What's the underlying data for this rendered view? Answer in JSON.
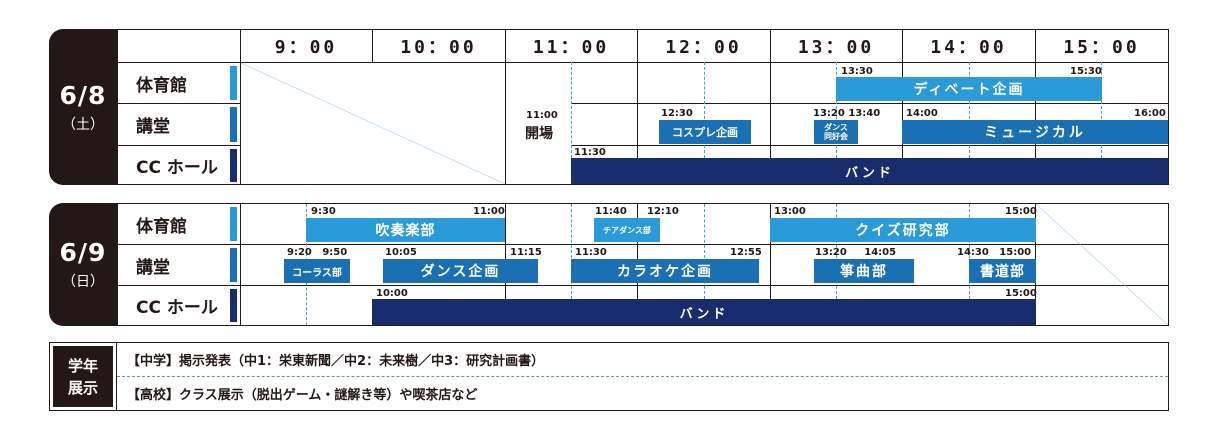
{
  "header_times": [
    "9：00",
    "10：00",
    "11：00",
    "12：00",
    "13：00",
    "14：00",
    "15：00"
  ],
  "day1": {
    "date": "6/8",
    "weekday": "（土）",
    "venues": [
      "体育館",
      "講堂",
      "CC ホール"
    ],
    "opening": {
      "time": "11:00",
      "label": "開場"
    },
    "events": {
      "debate": {
        "label": "ディベート企画",
        "start": "13:30",
        "end": "15:30"
      },
      "cosplay": {
        "label": "コスプレ企画",
        "start": "12:30"
      },
      "dance_club": {
        "label": "ダンス\n同好会",
        "start": "13:20",
        "end": "13:40"
      },
      "musical": {
        "label": "ミュージカル",
        "start": "14:00",
        "end": "16:00"
      },
      "band": {
        "label": "バンド",
        "start": "11:30"
      }
    }
  },
  "day2": {
    "date": "6/9",
    "weekday": "（日）",
    "venues": [
      "体育館",
      "講堂",
      "CC ホール"
    ],
    "events": {
      "brass": {
        "label": "吹奏楽部",
        "start": "9:30",
        "end": "11:00"
      },
      "cheer": {
        "label": "チアダンス部",
        "start": "11:40",
        "end": "12:10"
      },
      "quiz": {
        "label": "クイズ研究部",
        "start": "13:00",
        "end": "15:00"
      },
      "chorus": {
        "label": "コーラス部",
        "start": "9:20",
        "end": "9:50"
      },
      "dance": {
        "label": "ダンス企画",
        "start": "10:05",
        "end": "11:15"
      },
      "karaoke": {
        "label": "カラオケ企画",
        "start": "11:30",
        "end": "12:55"
      },
      "koto": {
        "label": "箏曲部",
        "start": "13:20",
        "end": "14:05"
      },
      "calligraphy": {
        "label": "書道部",
        "start": "14:30",
        "end": "15:00"
      },
      "band": {
        "label": "バンド",
        "start": "10:00",
        "end": "15:00"
      }
    }
  },
  "exhibits": {
    "title": "学年\n展示",
    "middle": "【中学】掲示発表（中1：栄東新聞／中2：未来樹／中3：研究計画書）",
    "high": "【高校】クラス展示（脱出ゲーム・謎解き等）や喫茶店など"
  },
  "colors": {
    "light_blue": "#2a9ad8",
    "mid_blue": "#1b70b3",
    "navy": "#182c6e",
    "dark": "#231815"
  }
}
